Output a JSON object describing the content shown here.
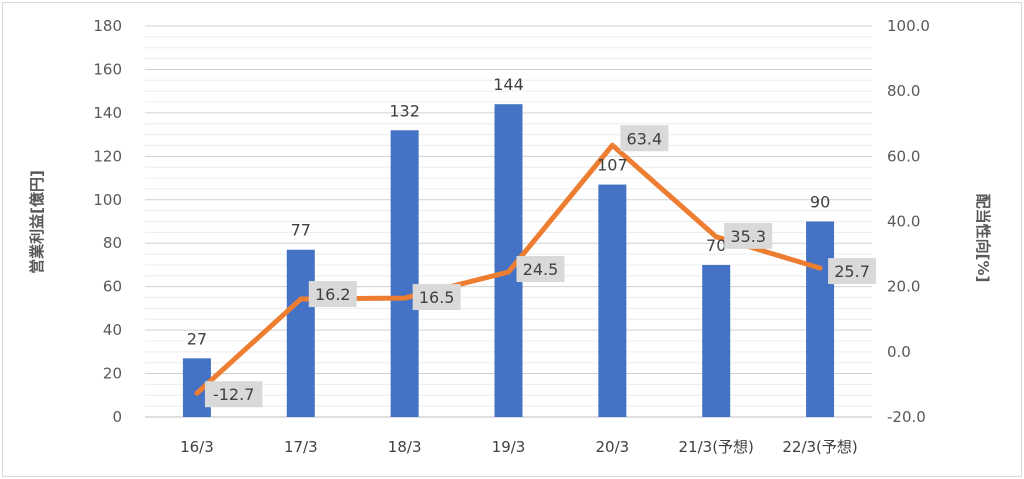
{
  "chart_data": {
    "type": "bar+line",
    "categories": [
      "16/3",
      "17/3",
      "18/3",
      "19/3",
      "20/3",
      "21/3(予想)",
      "22/3(予想)"
    ],
    "series": [
      {
        "type": "bar",
        "axis": "left",
        "values": [
          27,
          77,
          132,
          144,
          107,
          70,
          90
        ],
        "labels": [
          "27",
          "77",
          "132",
          "144",
          "107",
          "70",
          "90"
        ]
      },
      {
        "type": "line",
        "axis": "right",
        "values": [
          -12.7,
          16.2,
          16.5,
          24.5,
          63.4,
          35.3,
          25.7
        ],
        "labels": [
          "-12.7",
          "16.2",
          "16.5",
          "24.5",
          "63.4",
          "35.3",
          "25.7"
        ]
      }
    ],
    "y_left": {
      "label": "営業利益[億円]",
      "ylim": [
        0,
        180
      ],
      "ticks": [
        "0",
        "20",
        "40",
        "60",
        "80",
        "100",
        "120",
        "140",
        "160",
        "180"
      ]
    },
    "y_right": {
      "label": "配当性向[%]",
      "ylim": [
        -20,
        100
      ],
      "ticks": [
        "-20.0",
        "0.0",
        "20.0",
        "40.0",
        "60.0",
        "80.0",
        "100.0"
      ]
    },
    "grid": true,
    "legend": "none",
    "colors": {
      "bar": "#4472c4",
      "line": "#ed7d31",
      "grid": "#d9d9d9",
      "label_box": "#d9d9d9"
    }
  }
}
